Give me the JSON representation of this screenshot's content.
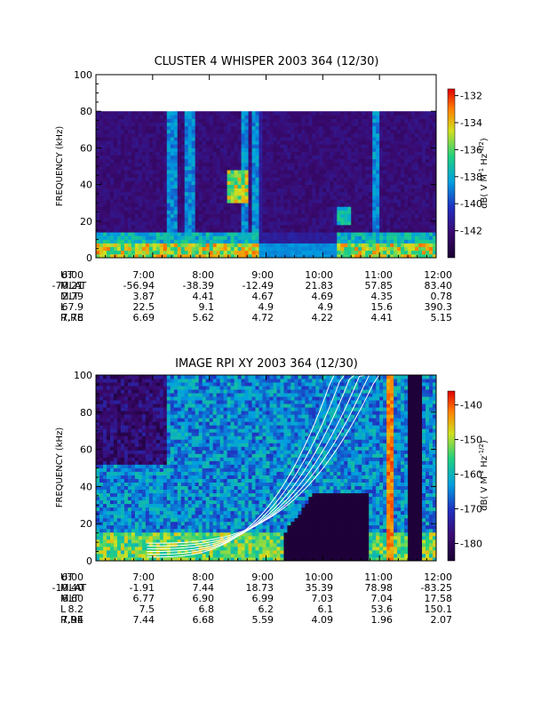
{
  "chart_data": [
    {
      "type": "heatmap",
      "title": "CLUSTER 4 WHISPER 2003 364 (12/30)",
      "ylabel": "FREQUENCY (kHz)",
      "ylim": [
        0,
        100
      ],
      "yticks": [
        "0",
        "20",
        "40",
        "60",
        "80",
        "100"
      ],
      "xticks": [
        "6:00",
        "7:00",
        "8:00",
        "9:00",
        "10:00",
        "11:00",
        "12:00"
      ],
      "colorbar": {
        "label": "dB( V M",
        "label_sup1": "-1",
        "label_mid": " Hz",
        "label_sup2": "-1/2",
        "label_end": ")",
        "range": [
          -144,
          -131.5
        ],
        "ticks": [
          "-132",
          "-134",
          "-136",
          "-138",
          "-140",
          "-142"
        ]
      },
      "data_top_khz": 80,
      "orbit": {
        "labels": [
          "UT",
          "MLAT",
          "MLT",
          "L",
          "R,RE"
        ],
        "rows": [
          [
            "6:00",
            "7:00",
            "8:00",
            "9:00",
            "10:00",
            "11:00",
            "12:00"
          ],
          [
            "-70.21",
            "-56.94",
            "-38.39",
            "-12.49",
            "21.83",
            "57.85",
            "83.40"
          ],
          [
            "2.79",
            "3.87",
            "4.41",
            "4.67",
            "4.69",
            "4.35",
            "0.78"
          ],
          [
            "67.9",
            "22.5",
            "9.1",
            "4.9",
            "4.9",
            "15.6",
            "390.3"
          ],
          [
            "7.78",
            "6.69",
            "5.62",
            "4.72",
            "4.22",
            "4.41",
            "5.15"
          ]
        ]
      }
    },
    {
      "type": "heatmap",
      "title": "IMAGE RPI XY 2003 364 (12/30)",
      "ylabel": "FREQUENCY (kHz)",
      "ylim": [
        0,
        100
      ],
      "yticks": [
        "0",
        "20",
        "40",
        "60",
        "80",
        "100"
      ],
      "xticks": [
        "6:00",
        "7:00",
        "8:00",
        "9:00",
        "10:00",
        "11:00",
        "12:00"
      ],
      "colorbar": {
        "label": "dB( V M",
        "label_sup1": "-1",
        "label_mid": " Hz",
        "label_sup2": "-1/2",
        "label_end": ")",
        "range": [
          -185,
          -136
        ],
        "ticks": [
          "-140",
          "-150",
          "-160",
          "-170",
          "-180"
        ]
      },
      "orbit": {
        "labels": [
          "UT",
          "MLAT",
          "MLT",
          "L",
          "R,RE"
        ],
        "rows": [
          [
            "6:00",
            "7:00",
            "8:00",
            "9:00",
            "10:00",
            "11:00",
            "12:00"
          ],
          [
            "-10.40",
            "-1.91",
            "7.44",
            "18.73",
            "35.39",
            "78.98",
            "-83.25"
          ],
          [
            "6.60",
            "6.77",
            "6.90",
            "6.99",
            "7.03",
            "7.04",
            "17.58"
          ],
          [
            "8.2",
            "7.5",
            "6.8",
            "6.2",
            "6.1",
            "53.6",
            "150.1"
          ],
          [
            "7.94",
            "7.44",
            "6.68",
            "5.59",
            "4.09",
            "1.96",
            "2.07"
          ]
        ]
      }
    }
  ]
}
